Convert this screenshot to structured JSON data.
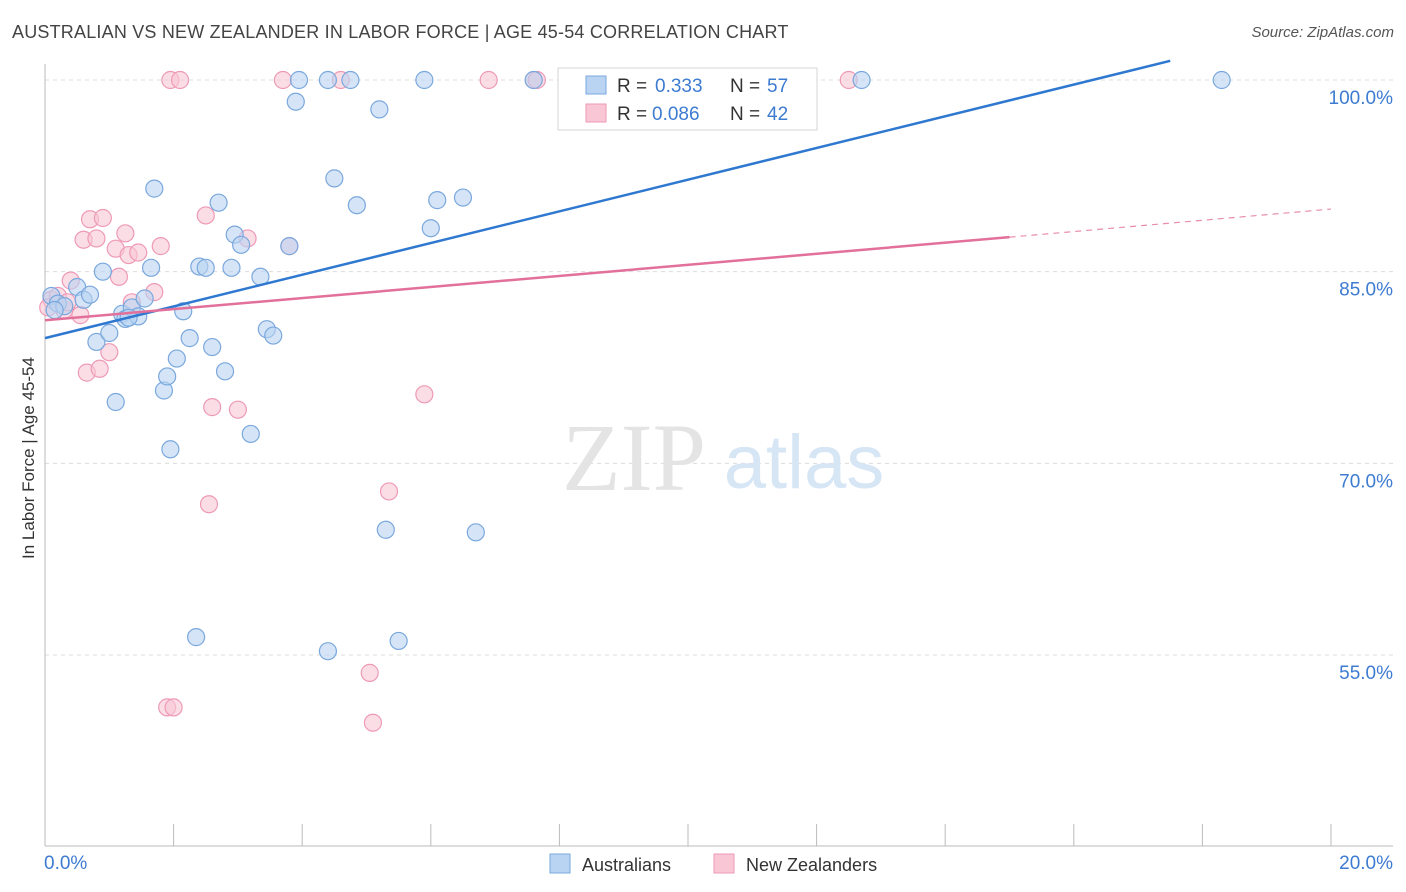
{
  "title": "AUSTRALIAN VS NEW ZEALANDER IN LABOR FORCE | AGE 45-54 CORRELATION CHART",
  "source": "Source: ZipAtlas.com",
  "watermark": {
    "zip": "ZIP",
    "atlas": "atlas"
  },
  "colors": {
    "blue_fill": "#b9d3f2",
    "blue_stroke": "#7aa8dd",
    "blue_line": "#2f78d0",
    "pink_fill": "#f9c6d6",
    "pink_stroke": "#ee9ab6",
    "pink_line": "#e2709a",
    "axis_text": "#3d7bd1",
    "grid": "#dcdcdc"
  },
  "legend": {
    "r_label": "R =",
    "n_label": "N =",
    "australians": {
      "r": "0.333",
      "n": "57"
    },
    "new_zealanders": {
      "r": "0.086",
      "n": "42"
    }
  },
  "chart_data": {
    "type": "scatter",
    "title": "AUSTRALIAN VS NEW ZEALANDER IN LABOR FORCE | AGE 45-54 CORRELATION CHART",
    "xlabel": "",
    "ylabel": "In Labor Force | Age 45-54",
    "xlim": [
      0,
      20
    ],
    "ylim": [
      41,
      101.5
    ],
    "x_tick_labels": [
      {
        "value": 0,
        "label": "0.0%"
      },
      {
        "value": 20,
        "label": "20.0%"
      }
    ],
    "y_tick_labels": [
      {
        "value": 100,
        "label": "100.0%"
      },
      {
        "value": 85,
        "label": "85.0%"
      },
      {
        "value": 70,
        "label": "70.0%"
      },
      {
        "value": 55,
        "label": "55.0%"
      }
    ],
    "series": [
      {
        "name": "Australians",
        "r": 0.333,
        "n": 57,
        "trend": {
          "x": [
            0,
            17.5
          ],
          "y": [
            79.8,
            101.5
          ],
          "dashed_to": null
        },
        "points": [
          [
            0.1,
            83.1
          ],
          [
            0.2,
            82.5
          ],
          [
            0.3,
            82.3
          ],
          [
            0.5,
            83.8
          ],
          [
            0.6,
            82.8
          ],
          [
            0.7,
            83.2
          ],
          [
            0.8,
            79.5
          ],
          [
            0.9,
            85.0
          ],
          [
            1.0,
            80.2
          ],
          [
            1.1,
            74.8
          ],
          [
            1.2,
            81.7
          ],
          [
            1.25,
            81.3
          ],
          [
            1.35,
            82.2
          ],
          [
            1.45,
            81.5
          ],
          [
            1.55,
            82.9
          ],
          [
            1.65,
            85.3
          ],
          [
            1.7,
            91.5
          ],
          [
            1.85,
            75.7
          ],
          [
            1.9,
            76.8
          ],
          [
            1.95,
            71.1
          ],
          [
            2.05,
            78.2
          ],
          [
            2.15,
            81.9
          ],
          [
            2.25,
            79.8
          ],
          [
            2.35,
            56.4
          ],
          [
            2.4,
            85.4
          ],
          [
            2.5,
            85.3
          ],
          [
            2.6,
            79.1
          ],
          [
            2.7,
            90.4
          ],
          [
            2.8,
            77.2
          ],
          [
            2.9,
            85.3
          ],
          [
            2.95,
            87.9
          ],
          [
            3.05,
            87.1
          ],
          [
            3.2,
            72.3
          ],
          [
            3.35,
            84.6
          ],
          [
            3.45,
            80.5
          ],
          [
            3.55,
            80.0
          ],
          [
            3.8,
            87.0
          ],
          [
            3.9,
            98.3
          ],
          [
            3.95,
            100.0
          ],
          [
            4.4,
            100.0
          ],
          [
            4.4,
            55.3
          ],
          [
            4.5,
            92.3
          ],
          [
            4.75,
            100.0
          ],
          [
            4.85,
            90.2
          ],
          [
            5.2,
            97.7
          ],
          [
            5.3,
            64.8
          ],
          [
            5.5,
            56.1
          ],
          [
            5.9,
            100.0
          ],
          [
            6.0,
            88.4
          ],
          [
            6.1,
            90.6
          ],
          [
            6.5,
            90.8
          ],
          [
            6.7,
            64.6
          ],
          [
            7.6,
            100.0
          ],
          [
            12.7,
            100.0
          ],
          [
            18.3,
            100.0
          ],
          [
            0.15,
            82.0
          ],
          [
            1.3,
            81.4
          ]
        ]
      },
      {
        "name": "New Zealanders",
        "r": 0.086,
        "n": 42,
        "trend": {
          "x": [
            0,
            15.0
          ],
          "y": [
            81.2,
            87.7
          ],
          "dashed_to": {
            "x": 20,
            "y": 89.9
          }
        },
        "points": [
          [
            0.1,
            82.8
          ],
          [
            0.2,
            83.1
          ],
          [
            0.3,
            82.0
          ],
          [
            0.4,
            84.3
          ],
          [
            0.55,
            81.6
          ],
          [
            0.6,
            87.5
          ],
          [
            0.65,
            77.1
          ],
          [
            0.7,
            89.1
          ],
          [
            0.8,
            87.6
          ],
          [
            0.85,
            77.4
          ],
          [
            0.9,
            89.2
          ],
          [
            1.0,
            78.7
          ],
          [
            1.1,
            86.8
          ],
          [
            1.15,
            84.6
          ],
          [
            1.25,
            88.0
          ],
          [
            1.3,
            86.3
          ],
          [
            1.35,
            82.6
          ],
          [
            1.45,
            86.5
          ],
          [
            1.7,
            83.4
          ],
          [
            1.8,
            87.0
          ],
          [
            1.9,
            50.9
          ],
          [
            1.95,
            100.0
          ],
          [
            2.0,
            50.9
          ],
          [
            2.1,
            100.0
          ],
          [
            2.5,
            89.4
          ],
          [
            2.55,
            66.8
          ],
          [
            2.6,
            74.4
          ],
          [
            3.0,
            74.2
          ],
          [
            3.15,
            87.6
          ],
          [
            3.7,
            100.0
          ],
          [
            3.8,
            87.0
          ],
          [
            4.6,
            100.0
          ],
          [
            5.05,
            53.6
          ],
          [
            5.1,
            49.7
          ],
          [
            5.35,
            67.8
          ],
          [
            5.9,
            75.4
          ],
          [
            6.9,
            100.0
          ],
          [
            7.6,
            100.0
          ],
          [
            7.65,
            100.0
          ],
          [
            12.5,
            100.0
          ],
          [
            0.05,
            82.2
          ],
          [
            0.35,
            82.6
          ]
        ]
      }
    ],
    "legend_position": "top-center",
    "bottom_legend": [
      "Australians",
      "New Zealanders"
    ]
  }
}
